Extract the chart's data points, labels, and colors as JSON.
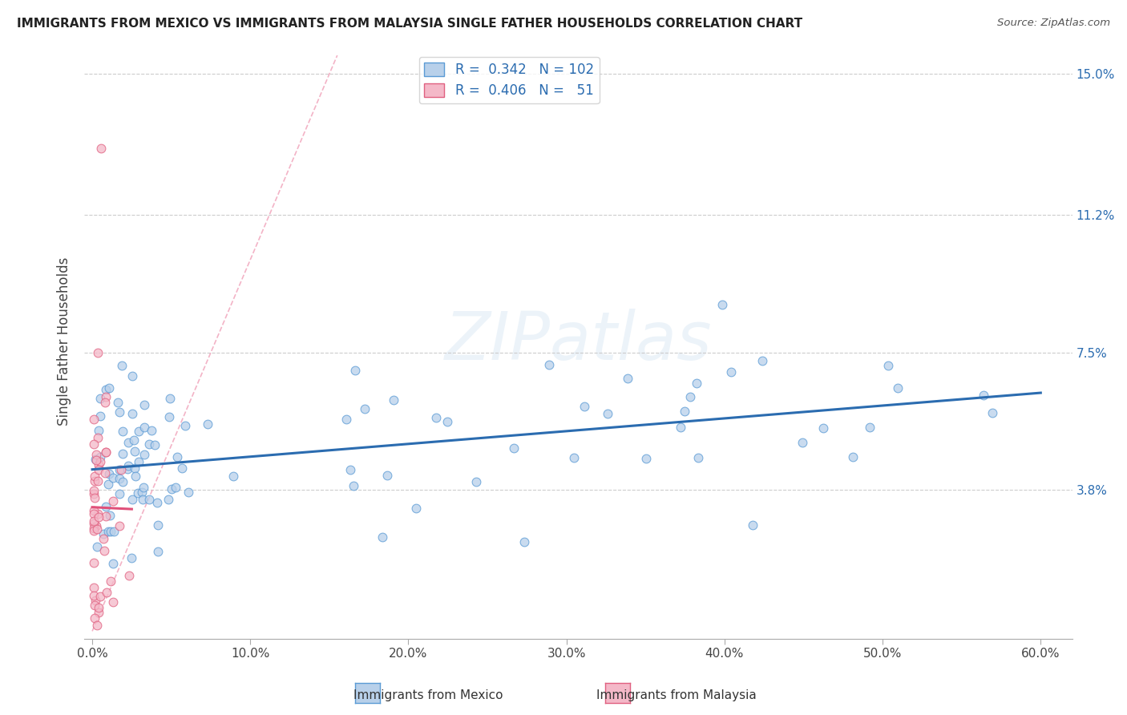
{
  "title": "IMMIGRANTS FROM MEXICO VS IMMIGRANTS FROM MALAYSIA SINGLE FATHER HOUSEHOLDS CORRELATION CHART",
  "source": "Source: ZipAtlas.com",
  "xlabel_mexico": "Immigrants from Mexico",
  "xlabel_malaysia": "Immigrants from Malaysia",
  "ylabel": "Single Father Households",
  "r_mexico": 0.342,
  "n_mexico": 102,
  "r_malaysia": 0.406,
  "n_malaysia": 51,
  "xlim": [
    -0.005,
    0.62
  ],
  "ylim": [
    -0.002,
    0.158
  ],
  "yticks": [
    0.038,
    0.075,
    0.112,
    0.15
  ],
  "ytick_labels": [
    "3.8%",
    "7.5%",
    "11.2%",
    "15.0%"
  ],
  "xticks": [
    0.0,
    0.1,
    0.2,
    0.3,
    0.4,
    0.5,
    0.6
  ],
  "xtick_labels": [
    "0.0%",
    "10.0%",
    "20.0%",
    "30.0%",
    "40.0%",
    "50.0%",
    "60.0%"
  ],
  "color_mexico_fill": "#b8d0ea",
  "color_mexico_edge": "#5b9bd5",
  "color_malaysia_fill": "#f4b8c8",
  "color_malaysia_edge": "#e06080",
  "color_line_mexico": "#2b6cb0",
  "color_line_malaysia": "#e0507a",
  "color_diag": "#f0a0b8",
  "watermark": "ZIPatlas",
  "background_color": "#ffffff",
  "seed_mexico": 42,
  "seed_malaysia": 99
}
